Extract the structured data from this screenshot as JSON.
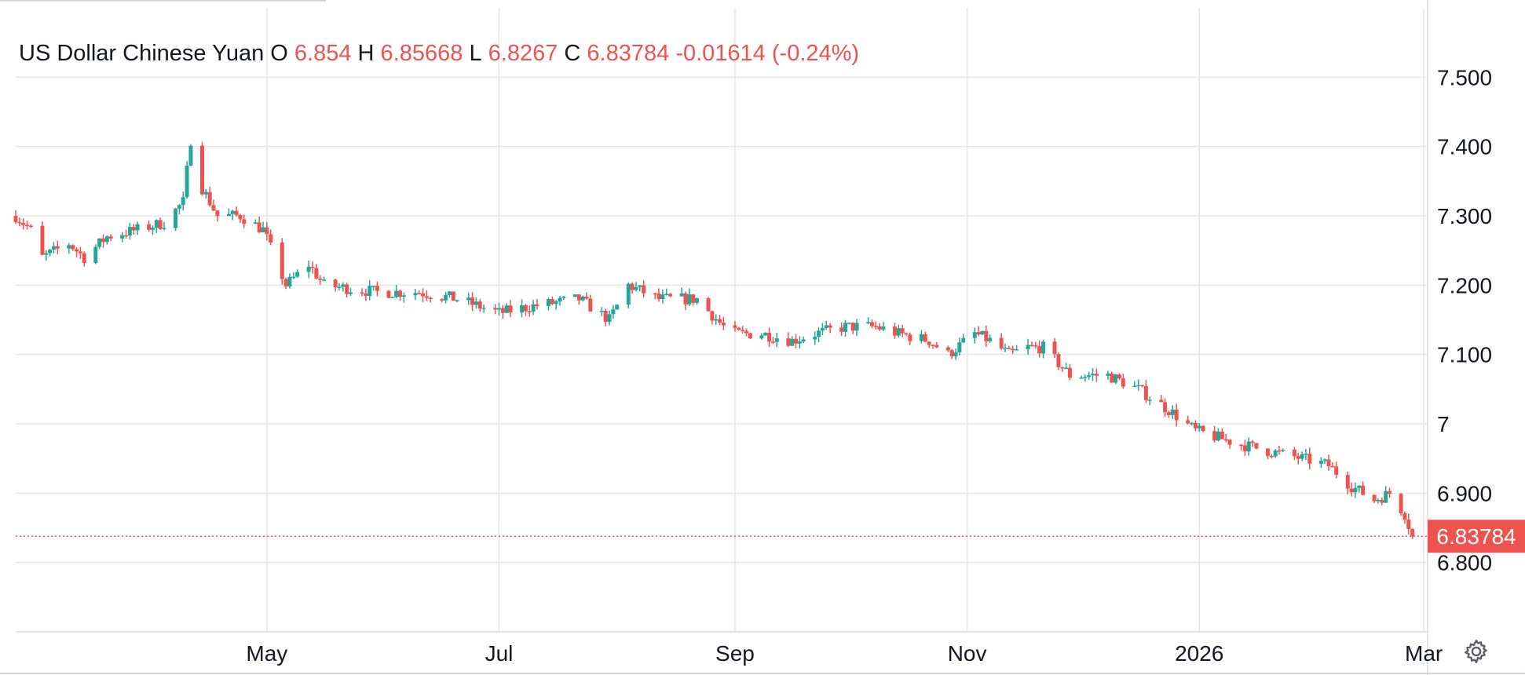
{
  "chart_data": {
    "type": "candlestick",
    "instrument": "US Dollar Chinese Yuan",
    "ohlc_legend": {
      "o_label": "O",
      "o_value": "6.854",
      "h_label": "H",
      "h_value": "6.85668",
      "l_label": "L",
      "l_value": "6.8267",
      "c_label": "C",
      "c_value": "6.83784",
      "change": "-0.01614",
      "change_pct": "(-0.24%)"
    },
    "last_price_label": "6.83784",
    "last_price": 6.83784,
    "x_tick_labels": [
      "May",
      "Jul",
      "Sep",
      "Nov",
      "2026",
      "Mar"
    ],
    "x_tick_dates": [
      "2025-05-01",
      "2025-07-01",
      "2025-09-01",
      "2025-11-01",
      "2026-01-01",
      "2026-03-01"
    ],
    "x_range": [
      "2025-02-24",
      "2026-03-02"
    ],
    "y_tick_labels": [
      "7.500",
      "7.400",
      "7.300",
      "7.200",
      "7.100",
      "7",
      "6.900",
      "6.800"
    ],
    "y_tick_values": [
      7.5,
      7.4,
      7.3,
      7.2,
      7.1,
      7.0,
      6.9,
      6.8
    ],
    "ylim": [
      6.7,
      7.6
    ],
    "grid": true,
    "price_axis_side": "right",
    "colors": {
      "up": "#26a69a",
      "down": "#ef5350",
      "grid": "#e6e6e6",
      "text": "#131722"
    },
    "anchors": [
      [
        "2025-02-24",
        7.3
      ],
      [
        "2025-02-28",
        7.28
      ],
      [
        "2025-03-03",
        7.24
      ],
      [
        "2025-03-10",
        7.26
      ],
      [
        "2025-03-14",
        7.24
      ],
      [
        "2025-03-20",
        7.27
      ],
      [
        "2025-03-28",
        7.28
      ],
      [
        "2025-04-04",
        7.29
      ],
      [
        "2025-04-09",
        7.32
      ],
      [
        "2025-04-11",
        7.41
      ],
      [
        "2025-04-14",
        7.34
      ],
      [
        "2025-04-18",
        7.3
      ],
      [
        "2025-04-24",
        7.3
      ],
      [
        "2025-04-30",
        7.28
      ],
      [
        "2025-05-06",
        7.2
      ],
      [
        "2025-05-12",
        7.23
      ],
      [
        "2025-05-16",
        7.2
      ],
      [
        "2025-05-30",
        7.19
      ],
      [
        "2025-06-10",
        7.19
      ],
      [
        "2025-06-20",
        7.18
      ],
      [
        "2025-07-01",
        7.16
      ],
      [
        "2025-07-10",
        7.17
      ],
      [
        "2025-07-22",
        7.18
      ],
      [
        "2025-07-30",
        7.15
      ],
      [
        "2025-08-04",
        7.2
      ],
      [
        "2025-08-12",
        7.18
      ],
      [
        "2025-08-22",
        7.18
      ],
      [
        "2025-08-29",
        7.14
      ],
      [
        "2025-09-01",
        7.13
      ],
      [
        "2025-09-08",
        7.13
      ],
      [
        "2025-09-16",
        7.12
      ],
      [
        "2025-09-22",
        7.13
      ],
      [
        "2025-09-30",
        7.14
      ],
      [
        "2025-10-08",
        7.14
      ],
      [
        "2025-10-14",
        7.13
      ],
      [
        "2025-10-22",
        7.12
      ],
      [
        "2025-10-27",
        7.1
      ],
      [
        "2025-11-03",
        7.13
      ],
      [
        "2025-11-07",
        7.12
      ],
      [
        "2025-11-12",
        7.1
      ],
      [
        "2025-11-17",
        7.11
      ],
      [
        "2025-11-21",
        7.11
      ],
      [
        "2025-11-28",
        7.07
      ],
      [
        "2025-12-08",
        7.07
      ],
      [
        "2025-12-16",
        7.05
      ],
      [
        "2025-12-24",
        7.02
      ],
      [
        "2025-12-31",
        6.99
      ],
      [
        "2026-01-06",
        6.98
      ],
      [
        "2026-01-12",
        6.97
      ],
      [
        "2026-01-20",
        6.96
      ],
      [
        "2026-01-28",
        6.95
      ],
      [
        "2026-02-04",
        6.94
      ],
      [
        "2026-02-10",
        6.91
      ],
      [
        "2026-02-16",
        6.89
      ],
      [
        "2026-02-20",
        6.9
      ],
      [
        "2026-02-24",
        6.87
      ],
      [
        "2026-02-26",
        6.83784
      ]
    ]
  }
}
